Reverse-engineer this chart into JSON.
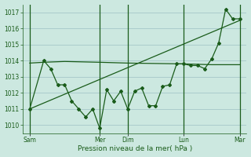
{
  "background_color": "#cce8e0",
  "grid_color": "#aacccc",
  "line_color": "#1a5c1a",
  "xlabel": "Pression niveau de la mer( hPa )",
  "ylim": [
    1009.5,
    1017.5
  ],
  "yticks": [
    1010,
    1011,
    1012,
    1013,
    1014,
    1015,
    1016,
    1017
  ],
  "day_labels": [
    "Sam",
    "Mer",
    "Dim",
    "Lun",
    "Mar"
  ],
  "day_tick_positions": [
    0.5,
    5.5,
    7.5,
    11.5,
    15.5
  ],
  "day_vline_positions": [
    0.5,
    5.5,
    7.5,
    11.5,
    15.5
  ],
  "xlim": [
    0,
    16
  ],
  "series1_x": [
    0.5,
    1.5,
    2.0,
    2.5,
    3.0,
    3.5,
    4.0,
    4.5,
    5.0,
    5.5,
    6.0,
    6.5,
    7.0,
    7.5,
    8.0,
    8.5,
    9.0,
    9.5,
    10.0,
    10.5,
    11.0,
    11.5,
    12.0,
    12.5,
    13.0,
    13.5,
    14.0,
    14.5,
    15.0,
    15.5
  ],
  "series1_y": [
    1011.0,
    1014.0,
    1013.5,
    1012.5,
    1012.5,
    1011.5,
    1011.0,
    1010.5,
    1011.0,
    1009.8,
    1012.2,
    1011.5,
    1012.1,
    1011.0,
    1012.1,
    1012.3,
    1011.2,
    1011.2,
    1012.4,
    1012.5,
    1013.8,
    1013.8,
    1013.7,
    1013.7,
    1013.5,
    1014.1,
    1015.1,
    1017.2,
    1016.6,
    1016.6
  ],
  "series2_x": [
    0.5,
    15.5
  ],
  "series2_y": [
    1011.0,
    1016.5
  ],
  "series3_x": [
    0.5,
    1.5,
    3.0,
    5.5,
    7.5,
    11.5,
    13.5,
    15.5
  ],
  "series3_y": [
    1013.85,
    1013.9,
    1013.95,
    1013.9,
    1013.85,
    1013.8,
    1013.75,
    1013.75
  ]
}
